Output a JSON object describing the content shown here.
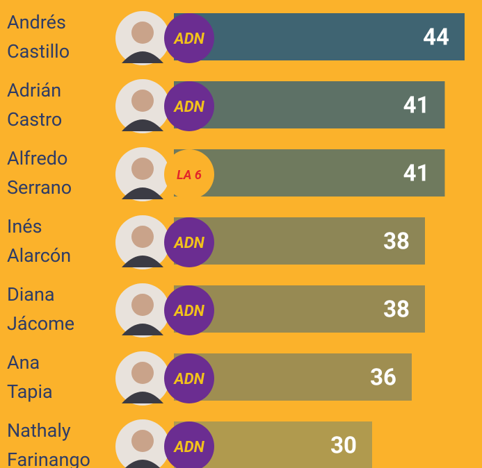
{
  "chart_data": {
    "type": "bar",
    "orientation": "horizontal",
    "categories": [
      "Andrés Castillo",
      "Adrián Castro",
      "Alfredo Serrano",
      "Inés Alarcón",
      "Diana Jácome",
      "Ana Tapia",
      "Nathaly Farinango"
    ],
    "values": [
      44,
      41,
      41,
      38,
      38,
      36,
      30
    ],
    "colors": [
      "#3f6472",
      "#5d7166",
      "#6f7a5e",
      "#8d8656",
      "#978a53",
      "#9f8e51",
      "#b09a4e"
    ],
    "parties": [
      "ADN",
      "ADN",
      "LA 6",
      "ADN",
      "ADN",
      "ADN",
      "ADN"
    ],
    "xlim": [
      0,
      46
    ]
  }
}
